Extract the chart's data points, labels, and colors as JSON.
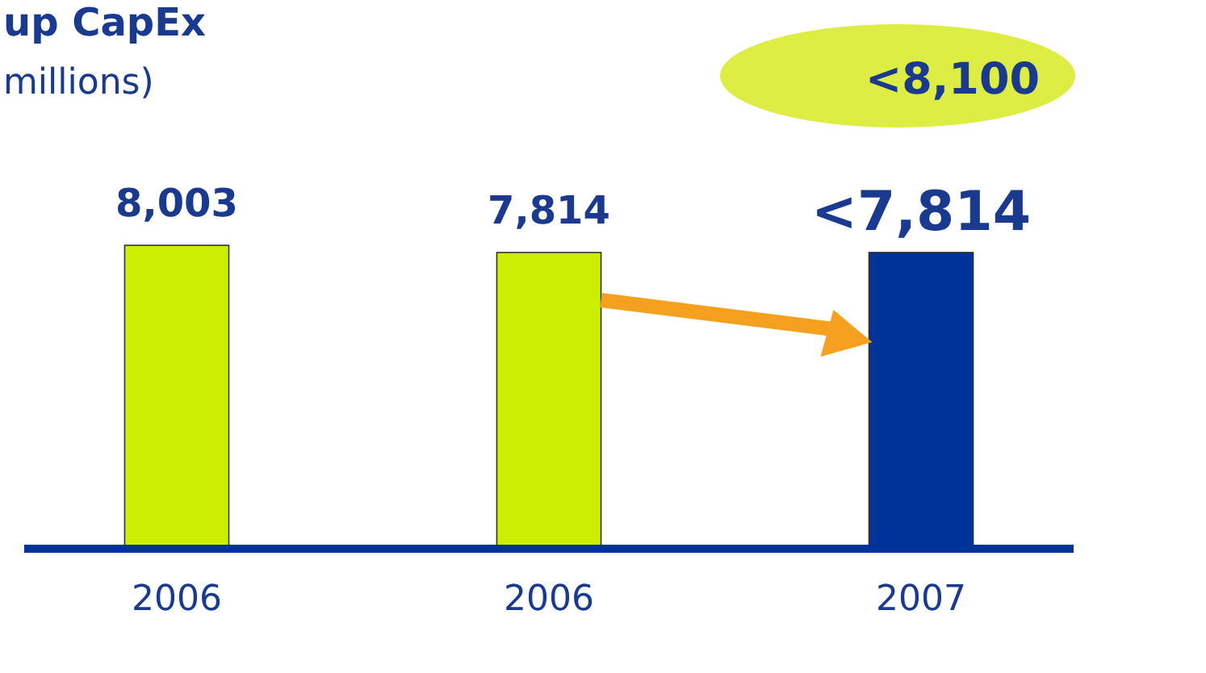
{
  "chart_data": {
    "type": "bar",
    "title": "up CapEx",
    "subtitle": "millions)",
    "categories": [
      "2006",
      "2006",
      "2007"
    ],
    "values": [
      8003,
      7814,
      7814
    ],
    "colors": [
      "#ccee00",
      "#ccee00",
      "#003399"
    ],
    "value_labels": [
      "8,003",
      "7,814",
      "<7,814"
    ],
    "annotations": [
      "<8,100"
    ]
  }
}
